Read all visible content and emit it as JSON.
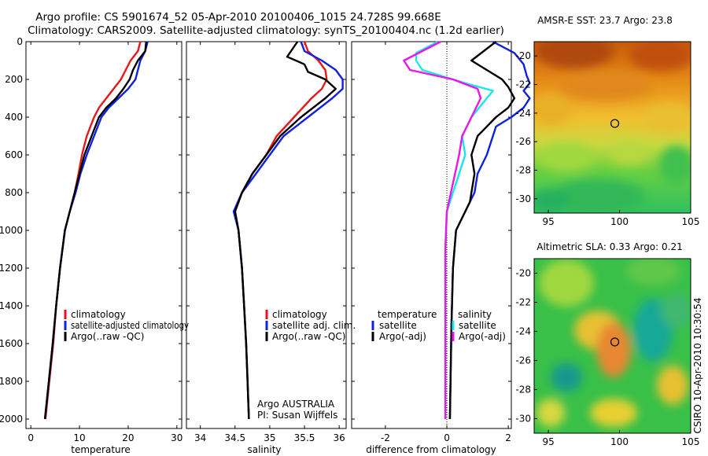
{
  "title_line1": "Argo profile: CS 5901674_52 05-Apr-2010 20100406_1015 24.728S 99.668E",
  "title_line2": "Climatology: CARS2009. Satellite-adjusted climatology: synTS_20100404.nc (1.2d earlier)",
  "side_label": "CSIRO 10-Apr-2010 10:30:54",
  "colors": {
    "climatology": "#e8161b",
    "satellite": "#1020e0",
    "argo": "#000000",
    "cyan": "#18e8e8",
    "magenta": "#e818e8"
  },
  "chart_data": [
    {
      "type": "line",
      "xlabel": "temperature",
      "xlim": [
        -1,
        31
      ],
      "ylim": [
        0,
        2050
      ],
      "xticks": [
        0,
        10,
        20,
        30
      ],
      "yticks": [
        0,
        200,
        400,
        600,
        800,
        1000,
        1200,
        1400,
        1600,
        1800,
        2000
      ],
      "legend": [
        "climatology",
        "satellite-adjusted climatology",
        "Argo(..raw -QC)"
      ],
      "legend_placement": "bottom-center",
      "series": [
        {
          "name": "climatology",
          "color": "climatology",
          "points": [
            [
              22.5,
              0
            ],
            [
              22,
              50
            ],
            [
              20.5,
              100
            ],
            [
              19.5,
              150
            ],
            [
              18.5,
              200
            ],
            [
              17,
              250
            ],
            [
              15.5,
              300
            ],
            [
              14,
              350
            ],
            [
              13,
              400
            ],
            [
              11.5,
              500
            ],
            [
              10.5,
              600
            ],
            [
              9.8,
              700
            ],
            [
              9,
              800
            ],
            [
              8,
              900
            ],
            [
              7,
              1000
            ],
            [
              6,
              1200
            ],
            [
              5.2,
              1400
            ],
            [
              4.6,
              1600
            ],
            [
              3.8,
              1800
            ],
            [
              3,
              2000
            ]
          ]
        },
        {
          "name": "satellite-adjusted",
          "color": "satellite",
          "points": [
            [
              24,
              0
            ],
            [
              23.5,
              50
            ],
            [
              22.5,
              100
            ],
            [
              22,
              150
            ],
            [
              21.5,
              200
            ],
            [
              20,
              250
            ],
            [
              18,
              300
            ],
            [
              16,
              350
            ],
            [
              14.5,
              400
            ],
            [
              13,
              500
            ],
            [
              11.5,
              600
            ],
            [
              10.2,
              700
            ],
            [
              9.2,
              800
            ],
            [
              8,
              900
            ],
            [
              7,
              1000
            ],
            [
              6,
              1200
            ],
            [
              5.2,
              1400
            ],
            [
              4.5,
              1600
            ],
            [
              3.7,
              1800
            ],
            [
              2.9,
              2000
            ]
          ]
        },
        {
          "name": "Argo",
          "color": "argo",
          "points": [
            [
              23.7,
              0
            ],
            [
              23.5,
              50
            ],
            [
              22,
              100
            ],
            [
              21,
              150
            ],
            [
              20.3,
              200
            ],
            [
              19,
              250
            ],
            [
              17.5,
              300
            ],
            [
              15.5,
              350
            ],
            [
              14,
              400
            ],
            [
              12.5,
              500
            ],
            [
              11,
              600
            ],
            [
              10,
              700
            ],
            [
              9,
              800
            ],
            [
              8,
              900
            ],
            [
              7,
              1000
            ],
            [
              6,
              1200
            ],
            [
              5.2,
              1400
            ],
            [
              4.5,
              1600
            ],
            [
              3.7,
              1800
            ],
            [
              2.9,
              2000
            ]
          ]
        }
      ]
    },
    {
      "type": "line",
      "xlabel": "salinity",
      "xlim": [
        33.8,
        36.1
      ],
      "ylim": [
        0,
        2050
      ],
      "xticks": [
        34,
        34.5,
        35,
        35.5,
        36
      ],
      "legend": [
        "climatology",
        "satellite adj. clim.",
        "Argo(..raw -QC)"
      ],
      "legend_placement": "bottom-right",
      "annotation": [
        "Argo AUSTRALIA",
        "PI: Susan Wijffels"
      ],
      "series": [
        {
          "name": "climatology",
          "color": "climatology",
          "points": [
            [
              35.5,
              0
            ],
            [
              35.55,
              50
            ],
            [
              35.7,
              100
            ],
            [
              35.8,
              150
            ],
            [
              35.82,
              200
            ],
            [
              35.75,
              250
            ],
            [
              35.6,
              300
            ],
            [
              35.35,
              400
            ],
            [
              35.1,
              500
            ],
            [
              34.95,
              600
            ],
            [
              34.75,
              700
            ],
            [
              34.6,
              800
            ],
            [
              34.5,
              900
            ],
            [
              34.55,
              1000
            ],
            [
              34.6,
              1200
            ],
            [
              34.63,
              1400
            ],
            [
              34.66,
              1600
            ],
            [
              34.68,
              1800
            ],
            [
              34.7,
              2000
            ]
          ]
        },
        {
          "name": "satellite-adjusted",
          "color": "satellite",
          "points": [
            [
              35.45,
              0
            ],
            [
              35.5,
              50
            ],
            [
              35.75,
              100
            ],
            [
              35.95,
              150
            ],
            [
              36.05,
              200
            ],
            [
              36.05,
              250
            ],
            [
              35.9,
              300
            ],
            [
              35.55,
              400
            ],
            [
              35.2,
              500
            ],
            [
              35,
              600
            ],
            [
              34.8,
              700
            ],
            [
              34.6,
              800
            ],
            [
              34.48,
              900
            ],
            [
              34.55,
              1000
            ],
            [
              34.6,
              1200
            ],
            [
              34.63,
              1400
            ],
            [
              34.66,
              1600
            ],
            [
              34.68,
              1800
            ],
            [
              34.7,
              2000
            ]
          ]
        },
        {
          "name": "Argo",
          "color": "argo",
          "points": [
            [
              35.4,
              0
            ],
            [
              35.25,
              80
            ],
            [
              35.5,
              120
            ],
            [
              35.55,
              160
            ],
            [
              35.8,
              200
            ],
            [
              35.95,
              250
            ],
            [
              35.8,
              300
            ],
            [
              35.45,
              400
            ],
            [
              35.15,
              500
            ],
            [
              34.95,
              600
            ],
            [
              34.75,
              700
            ],
            [
              34.6,
              800
            ],
            [
              34.5,
              900
            ],
            [
              34.55,
              1000
            ],
            [
              34.6,
              1200
            ],
            [
              34.63,
              1400
            ],
            [
              34.66,
              1600
            ],
            [
              34.68,
              1800
            ],
            [
              34.7,
              2000
            ]
          ]
        }
      ]
    },
    {
      "type": "line",
      "xlabel": "difference from climatology",
      "xlim": [
        -3.1,
        2.1
      ],
      "ylim": [
        0,
        2050
      ],
      "xticks": [
        -2,
        0,
        2
      ],
      "zero_line": true,
      "legend_temperature_header": "temperature",
      "legend_salinity_header": "salinity",
      "legend": [
        "satellite",
        "Argo(-adj)",
        "satellite",
        "Argo(-adj)"
      ],
      "legend_placement": "bottom-center",
      "series": [
        {
          "name": "temperature satellite",
          "color": "satellite",
          "points": [
            [
              1.5,
              0
            ],
            [
              2.2,
              60
            ],
            [
              2.5,
              120
            ],
            [
              2.6,
              180
            ],
            [
              2.7,
              220
            ],
            [
              2.5,
              260
            ],
            [
              2.7,
              300
            ],
            [
              2.5,
              350
            ],
            [
              2.1,
              400
            ],
            [
              1.6,
              450
            ],
            [
              1.5,
              500
            ],
            [
              1.3,
              600
            ],
            [
              1,
              700
            ],
            [
              0.9,
              800
            ],
            [
              0.6,
              900
            ],
            [
              0.3,
              1000
            ],
            [
              0.2,
              1200
            ],
            [
              0.15,
              1500
            ],
            [
              0.12,
              1800
            ],
            [
              0.1,
              2000
            ]
          ]
        },
        {
          "name": "temperature Argo",
          "color": "argo",
          "points": [
            [
              1.6,
              0
            ],
            [
              0.8,
              100
            ],
            [
              1.2,
              140
            ],
            [
              1.8,
              200
            ],
            [
              2,
              240
            ],
            [
              2.2,
              300
            ],
            [
              2.0,
              350
            ],
            [
              1.6,
              400
            ],
            [
              1.0,
              500
            ],
            [
              0.8,
              600
            ],
            [
              0.9,
              700
            ],
            [
              0.75,
              850
            ],
            [
              0.3,
              1000
            ],
            [
              0.2,
              1200
            ],
            [
              0.15,
              1500
            ],
            [
              0.12,
              1800
            ],
            [
              0.1,
              2000
            ]
          ]
        },
        {
          "name": "salinity satellite",
          "color": "cyan",
          "points": [
            [
              -0.3,
              0
            ],
            [
              -1.0,
              60
            ],
            [
              -1.0,
              100
            ],
            [
              -0.8,
              150
            ],
            [
              0.6,
              220
            ],
            [
              1.5,
              260
            ],
            [
              1.2,
              320
            ],
            [
              0.8,
              400
            ],
            [
              0.5,
              500
            ],
            [
              0.6,
              600
            ],
            [
              0.3,
              750
            ],
            [
              0,
              900
            ],
            [
              -0.05,
              1100
            ],
            [
              -0.05,
              1400
            ],
            [
              -0.05,
              1700
            ],
            [
              -0.05,
              2000
            ]
          ]
        },
        {
          "name": "salinity Argo",
          "color": "magenta",
          "points": [
            [
              -0.2,
              0
            ],
            [
              -1.4,
              100
            ],
            [
              -1.2,
              150
            ],
            [
              0.2,
              200
            ],
            [
              1.0,
              250
            ],
            [
              1.1,
              300
            ],
            [
              0.8,
              400
            ],
            [
              0.5,
              500
            ],
            [
              0.4,
              600
            ],
            [
              0.2,
              750
            ],
            [
              0,
              900
            ],
            [
              -0.05,
              1100
            ],
            [
              -0.05,
              1400
            ],
            [
              -0.05,
              1700
            ],
            [
              -0.05,
              2000
            ]
          ]
        }
      ]
    },
    {
      "type": "heatmap",
      "title": "AMSR-E SST: 23.7 Argo: 23.8",
      "xlim": [
        94,
        105
      ],
      "ylim": [
        -31,
        -19
      ],
      "xticks": [
        95,
        100,
        105
      ],
      "yticks": [
        -20,
        -22,
        -24,
        -26,
        -28,
        -30
      ],
      "argo_position": [
        99.668,
        -24.728
      ],
      "palette": "warm-to-green"
    },
    {
      "type": "heatmap",
      "title": "Altimetric SLA: 0.33 Argo: 0.21",
      "xlim": [
        94,
        105
      ],
      "ylim": [
        -31,
        -19
      ],
      "xticks": [
        95,
        100,
        105
      ],
      "yticks": [
        -20,
        -22,
        -24,
        -26,
        -28,
        -30
      ],
      "argo_position": [
        99.668,
        -24.728
      ],
      "palette": "green-blobs"
    }
  ]
}
